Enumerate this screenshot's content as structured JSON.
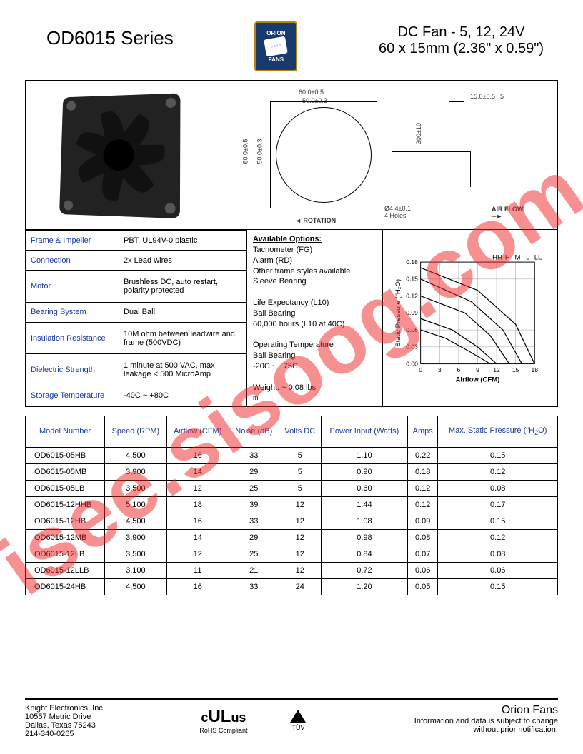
{
  "header": {
    "series": "OD6015 Series",
    "logo_top": "ORION",
    "logo_bottom": "FANS",
    "title_line1": "DC Fan - 5, 12, 24V",
    "title_line2": "60 x 15mm (2.36\" x 0.59\")"
  },
  "drawing": {
    "dim_width": "60.0±0.5",
    "dim_holes": "50.0±0.3",
    "dim_height": "60.0±0.5",
    "dim_holes_v": "50.0±0.3",
    "dim_depth": "15.0±0.5",
    "dim_depth2": "5",
    "dim_wire": "300±10",
    "hole_note": "Ø4.4±0.1\n4 Holes",
    "rotation": "ROTATION",
    "airflow": "AIR FLOW"
  },
  "specs": {
    "rows": [
      {
        "label": "Frame & Impeller",
        "value": "PBT, UL94V-0 plastic"
      },
      {
        "label": "Connection",
        "value": "2x Lead wires"
      },
      {
        "label": "Motor",
        "value": "Brushless DC, auto restart, polarity  protected"
      },
      {
        "label": "Bearing System",
        "value": "Dual Ball"
      },
      {
        "label": "Insulation Resistance",
        "value": "10M ohm between leadwire and frame (500VDC)"
      },
      {
        "label": "Dielectric Strength",
        "value": "1 minute at 500 VAC, max leakage < 500 MicroAmp"
      },
      {
        "label": "Storage Temperature",
        "value": "-40C ~ +80C"
      }
    ]
  },
  "options": {
    "title": "Available Options:",
    "lines": [
      "Tachometer (FG)",
      "Alarm (RD)",
      "Other frame styles available",
      "Sleeve Bearing"
    ],
    "life_title": "Life Expectancy (L10)",
    "life_lines": [
      "Ball Bearing",
      "60,000 hours (L10 at 40C)"
    ],
    "temp_title": "Operating Temperature",
    "temp_lines": [
      "Ball Bearing",
      "-20C ~ +75C"
    ],
    "weight": "Weight: ~ 0.08 lbs",
    "extra": "m"
  },
  "chart": {
    "curve_labels": [
      "HH",
      "H",
      "M",
      "L",
      "LL"
    ],
    "ylabel": "Static Pressure (\"H₂O)",
    "xlabel": "Airflow (CFM)",
    "yticks": [
      "0.00",
      "0.03",
      "0.06",
      "0.09",
      "0.12",
      "0.15",
      "0.18"
    ],
    "xticks": [
      "0",
      "3",
      "6",
      "9",
      "12",
      "15",
      "18"
    ],
    "grid_color": "#888",
    "curve_color": "#000"
  },
  "models": {
    "headers": [
      "Model Number",
      "Speed (RPM)",
      "Airflow (CFM)",
      "Noise (dB)",
      "Volts DC",
      "Power Input (Watts)",
      "Amps",
      "Max. Static Pressure (\"H₂O)"
    ],
    "rows": [
      [
        "OD6015-05HB",
        "4,500",
        "16",
        "33",
        "5",
        "1.10",
        "0.22",
        "0.15"
      ],
      [
        "OD6015-05MB",
        "3,900",
        "14",
        "29",
        "5",
        "0.90",
        "0.18",
        "0.12"
      ],
      [
        "OD6015-05LB",
        "3,500",
        "12",
        "25",
        "5",
        "0.60",
        "0.12",
        "0.08"
      ],
      [
        "OD6015-12HHB",
        "5,100",
        "18",
        "39",
        "12",
        "1.44",
        "0.12",
        "0.17"
      ],
      [
        "OD6015-12HB",
        "4,500",
        "16",
        "33",
        "12",
        "1.08",
        "0.09",
        "0.15"
      ],
      [
        "OD6015-12MB",
        "3,900",
        "14",
        "29",
        "12",
        "0.98",
        "0.08",
        "0.12"
      ],
      [
        "OD6015-12LB",
        "3,500",
        "12",
        "25",
        "12",
        "0.84",
        "0.07",
        "0.08"
      ],
      [
        "OD6015-12LLB",
        "3,100",
        "11",
        "21",
        "12",
        "0.72",
        "0.06",
        "0.06"
      ],
      [
        "OD6015-24HB",
        "4,500",
        "16",
        "33",
        "24",
        "1.20",
        "0.05",
        "0.15"
      ]
    ]
  },
  "footer": {
    "company": "Knight Electronics, Inc.",
    "addr1": "10557 Metric Drive",
    "addr2": "Dallas, Texas 75243",
    "phone": "214-340-0265",
    "cert1_mark": "cULus",
    "cert1_sub": "RoHS Compliant",
    "cert2_label": "TÜV",
    "brand": "Orion Fans",
    "note": "Information and data is subject to change without prior notification."
  },
  "watermark": "isee.sisoog.com",
  "colors": {
    "link_blue": "#1a3a9e",
    "watermark_red": "rgba(239,35,35,0.5)"
  }
}
